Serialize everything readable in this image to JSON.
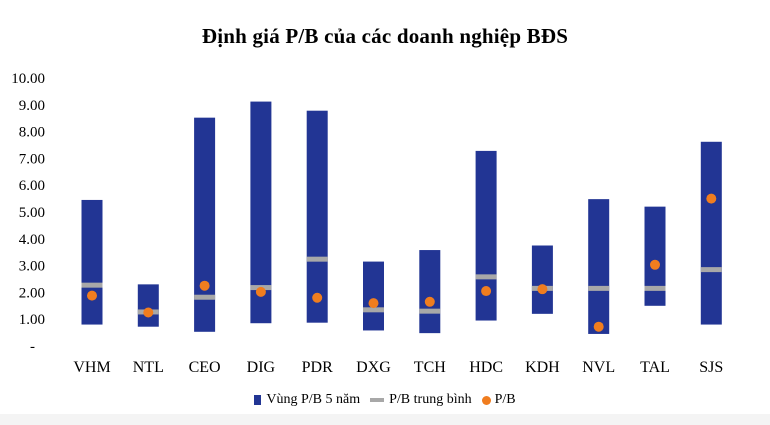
{
  "chart_data": {
    "type": "bar",
    "title": "Định giá P/B của các doanh nghiệp BĐS",
    "categories": [
      "VHM",
      "NTL",
      "CEO",
      "DIG",
      "PDR",
      "DXG",
      "TCH",
      "HDC",
      "KDH",
      "NVL",
      "TAL",
      "SJS"
    ],
    "y_ticks": [
      "-",
      "1.00",
      "2.00",
      "3.00",
      "4.00",
      "5.00",
      "6.00",
      "7.00",
      "8.00",
      "9.00",
      "10.00"
    ],
    "ylim": [
      0,
      10
    ],
    "series": [
      {
        "name": "Vùng P/B 5 năm",
        "kind": "floating-bar",
        "low": [
          0.8,
          0.72,
          0.53,
          0.85,
          0.87,
          0.58,
          0.48,
          0.95,
          1.2,
          0.45,
          1.5,
          0.8
        ],
        "high": [
          5.45,
          2.3,
          8.52,
          9.12,
          8.78,
          3.15,
          3.58,
          7.28,
          3.75,
          5.48,
          5.2,
          7.62
        ]
      },
      {
        "name": "P/B trung bình",
        "kind": "marker-line",
        "values": [
          2.27,
          1.27,
          1.82,
          2.18,
          3.24,
          1.35,
          1.3,
          2.58,
          2.15,
          2.15,
          2.15,
          2.85
        ]
      },
      {
        "name": "P/B",
        "kind": "dot",
        "values": [
          1.88,
          1.25,
          2.25,
          2.02,
          1.8,
          1.6,
          1.65,
          2.05,
          2.12,
          0.72,
          3.03,
          5.5
        ]
      }
    ],
    "colors": {
      "range": "#223594",
      "average": "#a8a8a8",
      "point": "#f07d1f"
    },
    "legend_position": "bottom"
  }
}
